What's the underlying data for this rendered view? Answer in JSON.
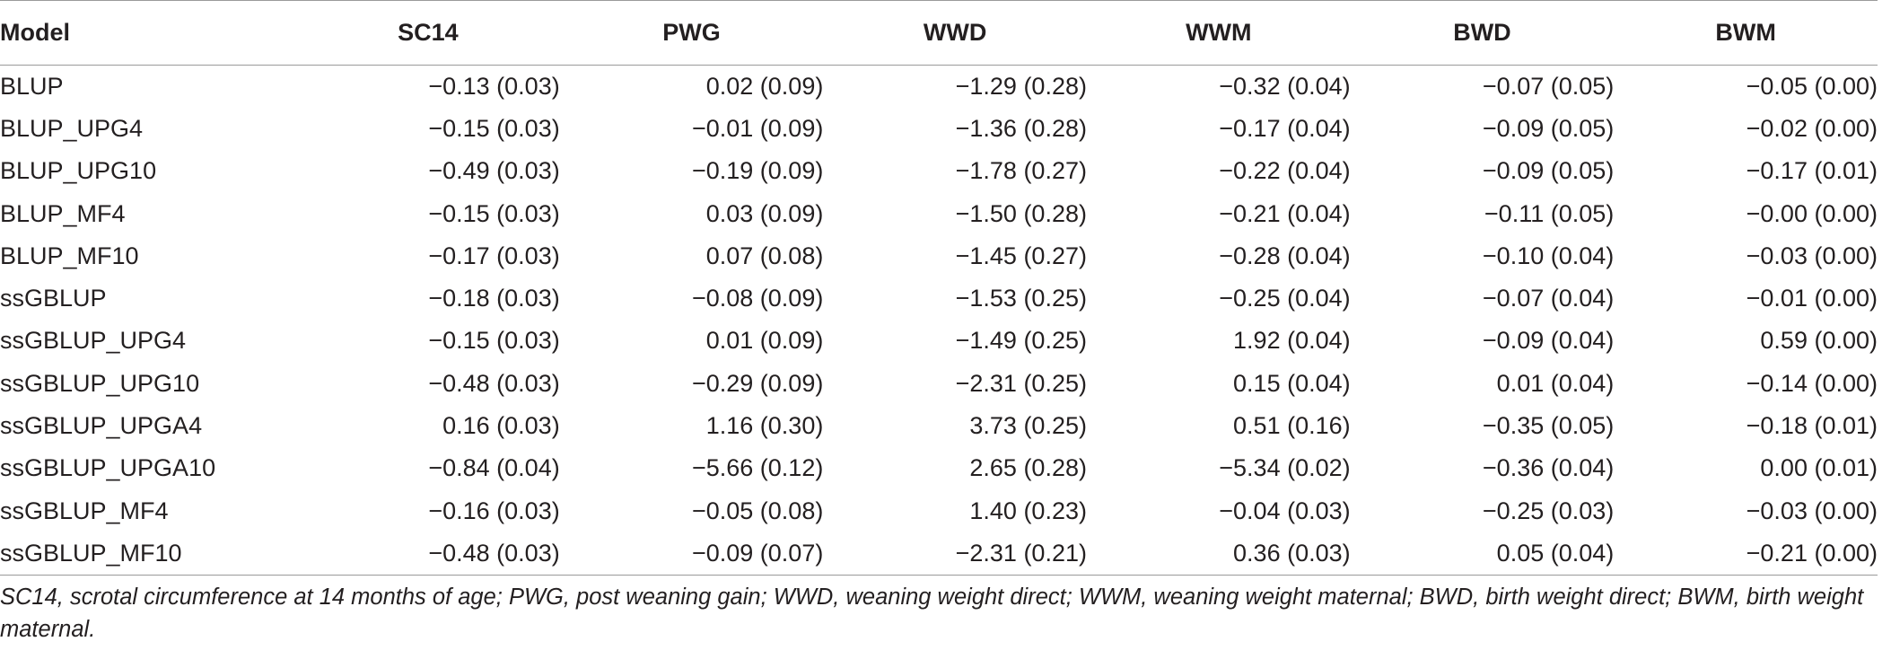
{
  "table": {
    "headers": [
      "Model",
      "SC14",
      "PWG",
      "WWD",
      "WWM",
      "BWD",
      "BWM"
    ],
    "rows": [
      [
        "BLUP",
        "−0.13 (0.03)",
        "0.02 (0.09)",
        "−1.29 (0.28)",
        "−0.32 (0.04)",
        "−0.07 (0.05)",
        "−0.05 (0.00)"
      ],
      [
        "BLUP_UPG4",
        "−0.15 (0.03)",
        "−0.01 (0.09)",
        "−1.36 (0.28)",
        "−0.17 (0.04)",
        "−0.09 (0.05)",
        "−0.02 (0.00)"
      ],
      [
        "BLUP_UPG10",
        "−0.49 (0.03)",
        "−0.19 (0.09)",
        "−1.78 (0.27)",
        "−0.22 (0.04)",
        "−0.09 (0.05)",
        "−0.17 (0.01)"
      ],
      [
        "BLUP_MF4",
        "−0.15 (0.03)",
        "0.03 (0.09)",
        "−1.50 (0.28)",
        "−0.21 (0.04)",
        "−0.11 (0.05)",
        "−0.00 (0.00)"
      ],
      [
        "BLUP_MF10",
        "−0.17 (0.03)",
        "0.07 (0.08)",
        "−1.45 (0.27)",
        "−0.28 (0.04)",
        "−0.10 (0.04)",
        "−0.03 (0.00)"
      ],
      [
        "ssGBLUP",
        "−0.18 (0.03)",
        "−0.08 (0.09)",
        "−1.53 (0.25)",
        "−0.25 (0.04)",
        "−0.07 (0.04)",
        "−0.01 (0.00)"
      ],
      [
        "ssGBLUP_UPG4",
        "−0.15 (0.03)",
        "0.01 (0.09)",
        "−1.49 (0.25)",
        "1.92 (0.04)",
        "−0.09 (0.04)",
        "0.59 (0.00)"
      ],
      [
        "ssGBLUP_UPG10",
        "−0.48 (0.03)",
        "−0.29 (0.09)",
        "−2.31 (0.25)",
        "0.15 (0.04)",
        "0.01 (0.04)",
        "−0.14 (0.00)"
      ],
      [
        "ssGBLUP_UPGA4",
        "0.16 (0.03)",
        "1.16 (0.30)",
        "3.73 (0.25)",
        "0.51 (0.16)",
        "−0.35 (0.05)",
        "−0.18 (0.01)"
      ],
      [
        "ssGBLUP_UPGA10",
        "−0.84 (0.04)",
        "−5.66 (0.12)",
        "2.65 (0.28)",
        "−5.34 (0.02)",
        "−0.36 (0.04)",
        "0.00 (0.01)"
      ],
      [
        "ssGBLUP_MF4",
        "−0.16 (0.03)",
        "−0.05 (0.08)",
        "1.40 (0.23)",
        "−0.04 (0.03)",
        "−0.25 (0.03)",
        "−0.03 (0.00)"
      ],
      [
        "ssGBLUP_MF10",
        "−0.48 (0.03)",
        "−0.09 (0.07)",
        "−2.31 (0.21)",
        "0.36 (0.03)",
        "0.05 (0.04)",
        "−0.21 (0.00)"
      ]
    ]
  },
  "footnote": "SC14, scrotal circumference at 14 months of age; PWG, post weaning gain; WWD, weaning weight direct; WWM, weaning weight maternal; BWD, birth weight direct; BWM, birth weight maternal."
}
